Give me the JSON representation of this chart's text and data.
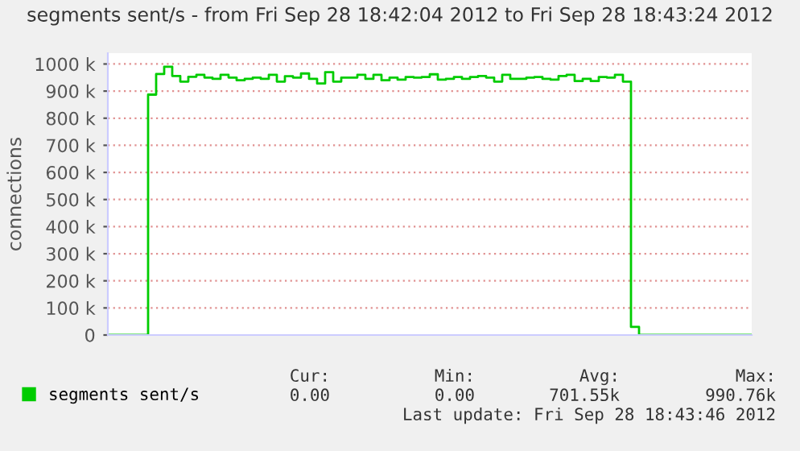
{
  "chart_data": {
    "type": "step",
    "title": "segments sent/s - from Fri Sep 28 18:42:04 2012 to Fri Sep 28 18:43:24 2012",
    "ylabel": "connections",
    "categories": [
      null,
      null,
      null,
      null,
      null,
      null,
      null,
      null,
      null,
      null,
      null,
      null,
      null,
      null,
      null,
      null,
      null,
      null,
      null,
      null,
      null,
      null,
      null,
      null,
      null,
      null,
      null,
      null,
      null,
      null,
      null,
      null,
      null,
      null,
      null,
      null,
      null,
      null,
      null,
      null,
      null,
      null,
      null,
      null,
      null,
      null,
      null,
      null,
      null,
      null,
      null,
      null,
      null,
      null,
      null,
      null,
      null,
      null,
      null,
      null,
      null,
      null,
      null,
      null,
      null,
      null,
      null,
      null,
      null,
      null,
      null,
      null,
      null,
      null,
      null,
      null,
      null,
      null,
      null,
      null
    ],
    "series": [
      {
        "name": "segments sent/s",
        "color": "#00cc00",
        "values": [
          0,
          0,
          0,
          0,
          0,
          887,
          963,
          990,
          956,
          935,
          953,
          960,
          950,
          945,
          960,
          950,
          940,
          945,
          950,
          945,
          960,
          935,
          955,
          950,
          965,
          945,
          928,
          970,
          935,
          950,
          950,
          960,
          945,
          960,
          940,
          950,
          942,
          952,
          950,
          952,
          962,
          942,
          945,
          952,
          945,
          952,
          956,
          950,
          935,
          960,
          945,
          945,
          950,
          952,
          945,
          942,
          956,
          960,
          937,
          945,
          937,
          952,
          950,
          960,
          935,
          30,
          0,
          0,
          0,
          0,
          0,
          0,
          0,
          0,
          0,
          0,
          0,
          0,
          0,
          0
        ]
      }
    ],
    "ylim": [
      0,
      1040
    ],
    "yticks": [
      0,
      {
        "value": 100,
        "label": "100 k"
      },
      {
        "value": 200,
        "label": "200 k"
      },
      {
        "value": 300,
        "label": "300 k"
      },
      {
        "value": 400,
        "label": "400 k"
      },
      {
        "value": 500,
        "label": "500 k"
      },
      {
        "value": 600,
        "label": "600 k"
      },
      {
        "value": 700,
        "label": "700 k"
      },
      {
        "value": 800,
        "label": "800 k"
      },
      {
        "value": 900,
        "label": "900 k"
      },
      {
        "value": 1000,
        "label": "1000 k"
      }
    ],
    "grid": "y",
    "legend": "bottom",
    "tick_labels": "y",
    "annotations": [
      "Cur:",
      "0.00",
      "Min:",
      "0.00",
      "Avg:",
      "701.55k",
      "Max:",
      "990.76k",
      "Last update: Fri Sep 28 18:43:46 2012"
    ]
  }
}
